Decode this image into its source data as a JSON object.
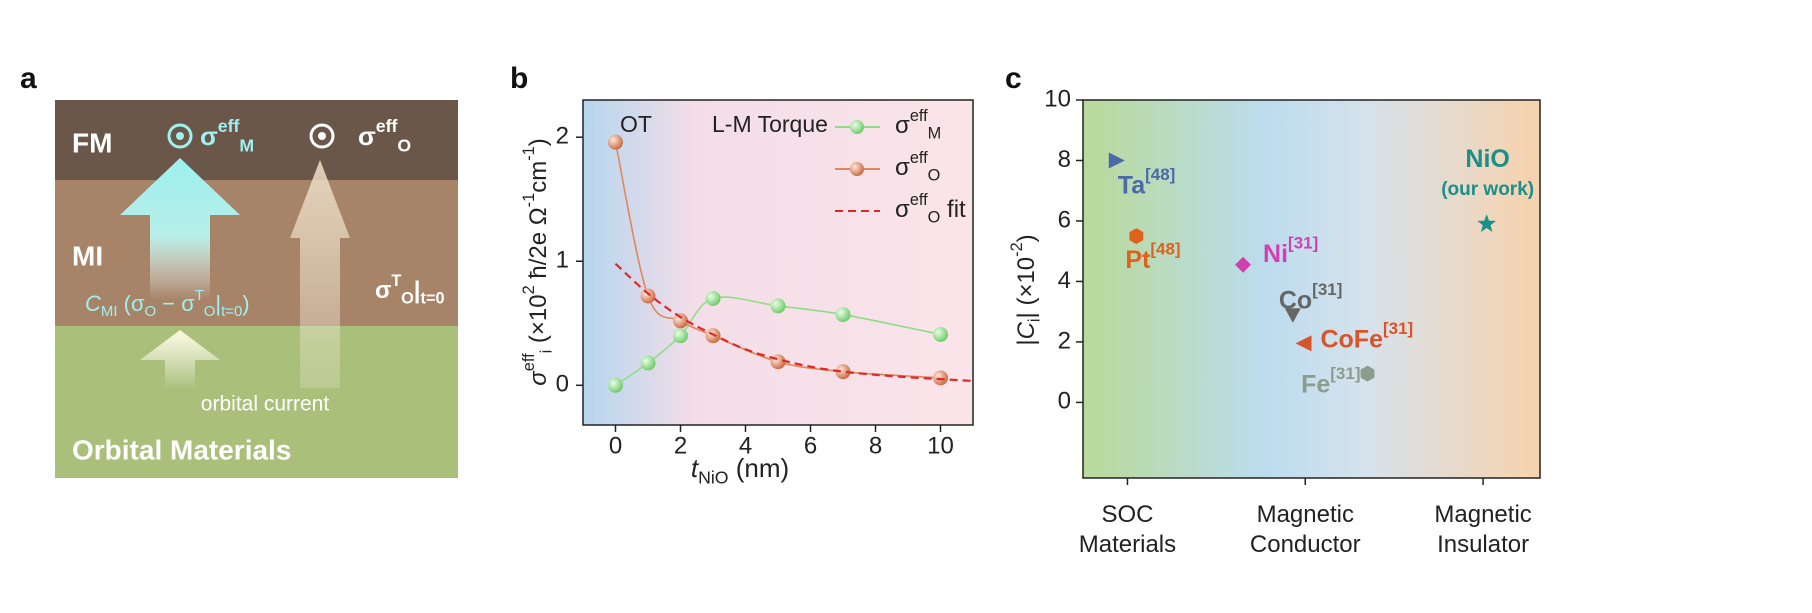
{
  "panel_a": {
    "panel_label": "a",
    "layers": [
      "FM",
      "MI",
      "Orbital Materials"
    ],
    "current_label": "orbital current",
    "sigma_m": [
      {
        "text": "σ",
        "pos": "base"
      },
      {
        "text": "eff",
        "pos": "sup"
      },
      {
        "text": "M",
        "pos": "sub"
      }
    ],
    "sigma_o": [
      {
        "text": "σ",
        "pos": "base"
      },
      {
        "text": "eff",
        "pos": "sup"
      },
      {
        "text": "O",
        "pos": "sub"
      }
    ],
    "conversion": [
      {
        "text": "C",
        "pos": "base",
        "italic": true
      },
      {
        "text": "MI",
        "pos": "sub"
      },
      {
        "text": " (σ",
        "pos": "base"
      },
      {
        "text": "O",
        "pos": "sub"
      },
      {
        "text": " − σ",
        "pos": "base"
      },
      {
        "text": "T",
        "pos": "sup"
      },
      {
        "text": "O",
        "pos": "sub"
      },
      {
        "text": "|",
        "pos": "base"
      },
      {
        "text": "t=0",
        "pos": "sub"
      },
      {
        "text": ")",
        "pos": "base"
      }
    ],
    "sigma_t0": [
      {
        "text": "σ",
        "pos": "base"
      },
      {
        "text": "T",
        "pos": "sup"
      },
      {
        "text": "O",
        "pos": "sub"
      },
      {
        "text": "|",
        "pos": "base"
      },
      {
        "text": "t=0",
        "pos": "sub"
      }
    ]
  },
  "chart_data": [
    {
      "type": "line",
      "panel_label": "b",
      "annotations": [
        "OT",
        "L-M Torque"
      ],
      "xlabel": [
        {
          "text": "t",
          "pos": "base",
          "italic": true
        },
        {
          "text": "NiO",
          "pos": "sub"
        },
        {
          "text": " (nm)",
          "pos": "base"
        }
      ],
      "ylabel": [
        {
          "text": "σ",
          "pos": "base",
          "italic": true
        },
        {
          "text": "eff",
          "pos": "sup"
        },
        {
          "text": "i",
          "pos": "sub"
        },
        {
          "text": " (×10",
          "pos": "base"
        },
        {
          "text": "2",
          "pos": "sup"
        },
        {
          "text": " ħ/2e Ω",
          "pos": "base"
        },
        {
          "text": "-1",
          "pos": "sup"
        },
        {
          "text": "cm",
          "pos": "base"
        },
        {
          "text": "-1",
          "pos": "sup"
        },
        {
          "text": ")",
          "pos": "base"
        }
      ],
      "x": [
        0,
        1,
        2,
        3,
        5,
        7,
        10
      ],
      "series": [
        {
          "name": [
            {
              "text": "σ",
              "pos": "base"
            },
            {
              "text": "eff",
              "pos": "sup"
            },
            {
              "text": "M",
              "pos": "sub"
            }
          ],
          "color": "#8fdc88",
          "marker": "circle",
          "values": [
            0,
            0.18,
            0.4,
            0.7,
            0.64,
            0.57,
            0.41
          ]
        },
        {
          "name": [
            {
              "text": "σ",
              "pos": "base"
            },
            {
              "text": "eff",
              "pos": "sup"
            },
            {
              "text": "O",
              "pos": "sub"
            }
          ],
          "color": "#e0875c",
          "marker": "circle",
          "values": [
            1.96,
            0.72,
            0.52,
            0.4,
            0.19,
            0.11,
            0.06
          ]
        },
        {
          "name": [
            {
              "text": "σ",
              "pos": "base"
            },
            {
              "text": "eff",
              "pos": "sup"
            },
            {
              "text": "O",
              "pos": "sub"
            },
            {
              "text": " fit",
              "pos": "base"
            }
          ],
          "color": "#e02828",
          "line": "dashed",
          "x": [
            0,
            1,
            2,
            3,
            4,
            5,
            6,
            7,
            8,
            9,
            10,
            11
          ],
          "values": [
            0.98,
            0.74,
            0.55,
            0.41,
            0.29,
            0.21,
            0.15,
            0.11,
            0.085,
            0.065,
            0.05,
            0.035
          ]
        }
      ],
      "xlim": [
        -1,
        11
      ],
      "xticks": [
        0,
        2,
        4,
        6,
        8,
        10
      ],
      "ylim": [
        -0.32,
        2.3
      ],
      "yticks": [
        0,
        1,
        2
      ]
    },
    {
      "type": "scatter",
      "panel_label": "c",
      "ylabel": [
        {
          "text": "|",
          "pos": "base"
        },
        {
          "text": "C",
          "pos": "base",
          "italic": true
        },
        {
          "text": "i",
          "pos": "sub"
        },
        {
          "text": "| (×10",
          "pos": "base"
        },
        {
          "text": "-2",
          "pos": "sup"
        },
        {
          "text": ")",
          "pos": "base"
        }
      ],
      "points": [
        {
          "label": [
            {
              "text": "Ta",
              "pos": "base"
            },
            {
              "text": "[48]",
              "pos": "sup"
            }
          ],
          "x": -0.06,
          "y": 8.0,
          "marker": "triangle-right",
          "color": "#4a6aa8"
        },
        {
          "label": [
            {
              "text": "Pt",
              "pos": "base"
            },
            {
              "text": "[48]",
              "pos": "sup"
            }
          ],
          "x": 0.05,
          "y": 5.5,
          "marker": "hexagon",
          "color": "#e0601e"
        },
        {
          "label": [
            {
              "text": "Ni",
              "pos": "base"
            },
            {
              "text": "[31]",
              "pos": "sup"
            }
          ],
          "x": 0.65,
          "y": 4.55,
          "marker": "diamond",
          "color": "#d040b0"
        },
        {
          "label": [
            {
              "text": "Co",
              "pos": "base"
            },
            {
              "text": "[31]",
              "pos": "sup"
            }
          ],
          "x": 0.93,
          "y": 2.9,
          "marker": "triangle-down",
          "color": "#666666"
        },
        {
          "label": [
            {
              "text": "CoFe",
              "pos": "base"
            },
            {
              "text": "[31]",
              "pos": "sup"
            }
          ],
          "x": 0.99,
          "y": 1.95,
          "marker": "triangle-left",
          "color": "#d9542a"
        },
        {
          "label": [
            {
              "text": "Fe",
              "pos": "base"
            },
            {
              "text": "[31]",
              "pos": "sup"
            }
          ],
          "x": 1.35,
          "y": 0.95,
          "marker": "hexagon",
          "color": "#8d9c8b"
        },
        {
          "label": [
            {
              "text": "NiO",
              "pos": "base"
            }
          ],
          "sublabel": "(our work)",
          "x": 2.02,
          "y": 5.9,
          "marker": "star",
          "color": "#1a9088"
        }
      ],
      "xlim": [
        -0.25,
        2.32
      ],
      "xticks": [
        {
          "value": 0,
          "label": "SOC Materials"
        },
        {
          "value": 1,
          "label": "Magnetic Conductor"
        },
        {
          "value": 2,
          "label": "Magnetic Insulator"
        }
      ],
      "ylim": [
        -2.5,
        10
      ],
      "yticks": [
        0,
        2,
        4,
        6,
        8,
        10
      ]
    }
  ]
}
